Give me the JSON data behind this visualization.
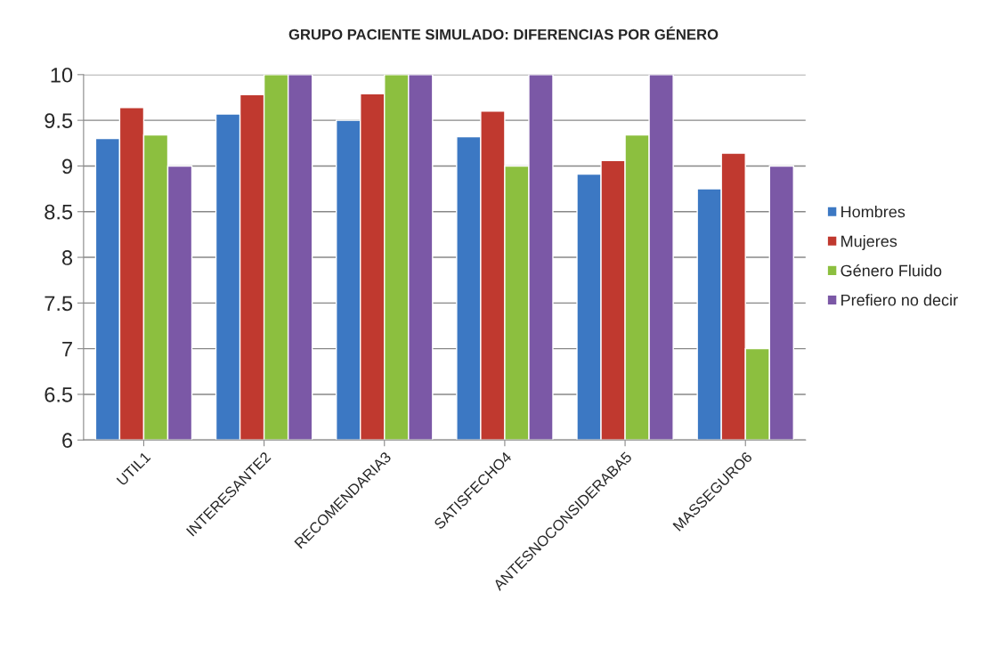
{
  "chart_data": {
    "type": "bar",
    "title": "GRUPO PACIENTE SIMULADO: DIFERENCIAS POR GÉNERO",
    "categories": [
      "UTIL1",
      "INTERESANTE2",
      "RECOMENDARIA3",
      "SATISFECHO4",
      "ANTESNOCONSIDERABA5",
      "MASSEGURO6"
    ],
    "series": [
      {
        "name": "Hombres",
        "color": "#3c78c3",
        "values": [
          9.3,
          9.57,
          9.5,
          9.32,
          8.91,
          8.75
        ]
      },
      {
        "name": "Mujeres",
        "color": "#c0392f",
        "values": [
          9.64,
          9.78,
          9.79,
          9.6,
          9.06,
          9.14
        ]
      },
      {
        "name": "Género Fluido",
        "color": "#8cbf3f",
        "values": [
          9.34,
          10,
          10,
          9,
          9.34,
          7
        ]
      },
      {
        "name": "Prefiero no decir",
        "color": "#7b58a6",
        "values": [
          9,
          10,
          10,
          10,
          10,
          9
        ]
      }
    ],
    "ylim": [
      6,
      10
    ],
    "yticks": [
      6,
      6.5,
      7,
      7.5,
      8,
      8.5,
      9,
      9.5,
      10
    ],
    "grid": "y",
    "legend": "right"
  }
}
